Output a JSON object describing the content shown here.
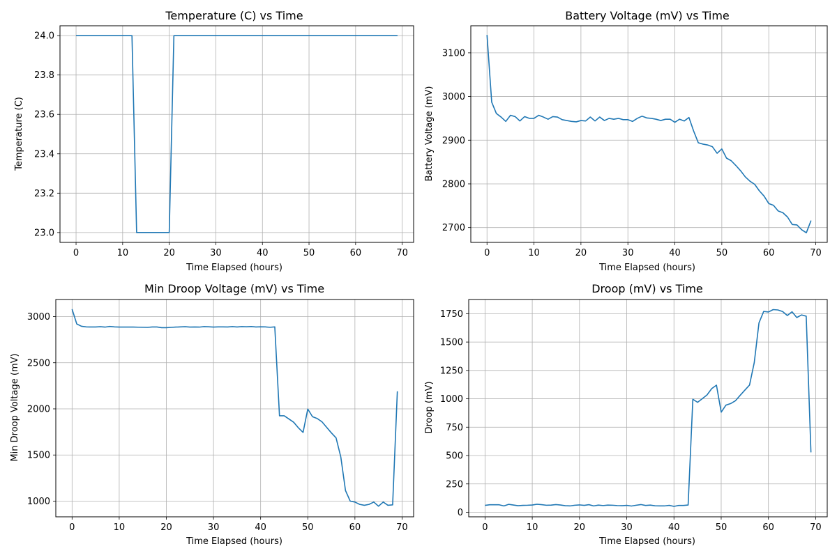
{
  "colors": {
    "series": "#1f77b4",
    "grid": "#b0b0b0"
  },
  "chart_data": [
    {
      "type": "line",
      "title": "Temperature (C) vs Time",
      "xlabel": "Time Elapsed (hours)",
      "ylabel": "Temperature (C)",
      "xlim": [
        -3.45,
        72.45
      ],
      "ylim": [
        22.95,
        24.05
      ],
      "xticks": [
        0,
        10,
        20,
        30,
        40,
        50,
        60,
        70
      ],
      "yticks": [
        23.0,
        23.2,
        23.4,
        23.6,
        23.8,
        24.0
      ],
      "ytick_labels": [
        "23.0",
        "23.2",
        "23.4",
        "23.6",
        "23.8",
        "24.0"
      ],
      "grid": true,
      "series": [
        {
          "x": [
            0,
            1,
            2,
            3,
            4,
            5,
            6,
            7,
            8,
            9,
            10,
            11,
            12,
            13,
            14,
            15,
            16,
            17,
            18,
            19,
            20,
            21,
            22,
            23,
            24,
            25,
            26,
            27,
            28,
            29,
            30,
            31,
            32,
            33,
            34,
            35,
            36,
            37,
            38,
            39,
            40,
            41,
            42,
            43,
            44,
            45,
            46,
            47,
            48,
            49,
            50,
            51,
            52,
            53,
            54,
            55,
            56,
            57,
            58,
            59,
            60,
            61,
            62,
            63,
            64,
            65,
            66,
            67,
            68,
            69
          ],
          "values": [
            24,
            24,
            24,
            24,
            24,
            24,
            24,
            24,
            24,
            24,
            24,
            24,
            24,
            23,
            23,
            23,
            23,
            23,
            23,
            23,
            23,
            24,
            24,
            24,
            24,
            24,
            24,
            24,
            24,
            24,
            24,
            24,
            24,
            24,
            24,
            24,
            24,
            24,
            24,
            24,
            24,
            24,
            24,
            24,
            24,
            24,
            24,
            24,
            24,
            24,
            24,
            24,
            24,
            24,
            24,
            24,
            24,
            24,
            24,
            24,
            24,
            24,
            24,
            24,
            24,
            24,
            24,
            24,
            24,
            24
          ]
        }
      ]
    },
    {
      "type": "line",
      "title": "Battery Voltage (mV) vs Time",
      "xlabel": "Time Elapsed (hours)",
      "ylabel": "Battery Voltage (mV)",
      "xlim": [
        -3.45,
        72.45
      ],
      "ylim": [
        2666,
        3162
      ],
      "xticks": [
        0,
        10,
        20,
        30,
        40,
        50,
        60,
        70
      ],
      "yticks": [
        2700,
        2800,
        2900,
        3000,
        3100
      ],
      "ytick_labels": [
        "2700",
        "2800",
        "2900",
        "3000",
        "3100"
      ],
      "grid": true,
      "series": [
        {
          "x": [
            0,
            1,
            2,
            3,
            4,
            5,
            6,
            7,
            8,
            9,
            10,
            11,
            12,
            13,
            14,
            15,
            16,
            17,
            18,
            19,
            20,
            21,
            22,
            23,
            24,
            25,
            26,
            27,
            28,
            29,
            30,
            31,
            32,
            33,
            34,
            35,
            36,
            37,
            38,
            39,
            40,
            41,
            42,
            43,
            44,
            45,
            46,
            47,
            48,
            49,
            50,
            51,
            52,
            53,
            54,
            55,
            56,
            57,
            58,
            59,
            60,
            61,
            62,
            63,
            64,
            65,
            66,
            67,
            68,
            69
          ],
          "values": [
            3141,
            2987,
            2961,
            2953,
            2943,
            2957,
            2954,
            2944,
            2954,
            2950,
            2950,
            2957,
            2953,
            2948,
            2954,
            2953,
            2947,
            2945,
            2943,
            2942,
            2945,
            2944,
            2953,
            2944,
            2953,
            2945,
            2950,
            2948,
            2950,
            2947,
            2947,
            2943,
            2950,
            2955,
            2951,
            2950,
            2948,
            2945,
            2948,
            2948,
            2941,
            2948,
            2944,
            2952,
            2921,
            2894,
            2891,
            2889,
            2885,
            2870,
            2880,
            2859,
            2853,
            2842,
            2830,
            2816,
            2806,
            2799,
            2784,
            2772,
            2755,
            2751,
            2738,
            2734,
            2724,
            2707,
            2706,
            2695,
            2688,
            2716
          ]
        }
      ]
    },
    {
      "type": "line",
      "title": "Min Droop Voltage (mV) vs Time",
      "xlabel": "Time Elapsed (hours)",
      "ylabel": "Min Droop Voltage (mV)",
      "xlim": [
        -3.45,
        72.45
      ],
      "ylim": [
        830,
        3185
      ],
      "xticks": [
        0,
        10,
        20,
        30,
        40,
        50,
        60,
        70
      ],
      "yticks": [
        1000,
        1500,
        2000,
        2500,
        3000
      ],
      "ytick_labels": [
        "1000",
        "1500",
        "2000",
        "2500",
        "3000"
      ],
      "grid": true,
      "series": [
        {
          "x": [
            0,
            1,
            2,
            3,
            4,
            5,
            6,
            7,
            8,
            9,
            10,
            11,
            12,
            13,
            14,
            15,
            16,
            17,
            18,
            19,
            20,
            21,
            22,
            23,
            24,
            25,
            26,
            27,
            28,
            29,
            30,
            31,
            32,
            33,
            34,
            35,
            36,
            37,
            38,
            39,
            40,
            41,
            42,
            43,
            44,
            45,
            46,
            47,
            48,
            49,
            50,
            51,
            52,
            53,
            54,
            55,
            56,
            57,
            58,
            59,
            60,
            61,
            62,
            63,
            64,
            65,
            66,
            67,
            68,
            69
          ],
          "values": [
            3080,
            2920,
            2895,
            2888,
            2887,
            2887,
            2890,
            2886,
            2893,
            2888,
            2886,
            2886,
            2886,
            2886,
            2885,
            2884,
            2883,
            2887,
            2887,
            2880,
            2880,
            2883,
            2886,
            2888,
            2890,
            2886,
            2887,
            2886,
            2891,
            2889,
            2886,
            2888,
            2888,
            2887,
            2891,
            2887,
            2891,
            2889,
            2892,
            2887,
            2889,
            2888,
            2884,
            2888,
            1925,
            1925,
            1890,
            1855,
            1795,
            1745,
            1998,
            1915,
            1895,
            1860,
            1800,
            1740,
            1685,
            1480,
            1115,
            1000,
            990,
            965,
            955,
            965,
            990,
            945,
            990,
            955,
            960,
            2190
          ]
        }
      ]
    },
    {
      "type": "line",
      "title": "Droop (mV) vs Time",
      "xlabel": "Time Elapsed (hours)",
      "ylabel": "Droop (mV)",
      "xlim": [
        -3.45,
        72.45
      ],
      "ylim": [
        -40,
        1875
      ],
      "xticks": [
        0,
        10,
        20,
        30,
        40,
        50,
        60,
        70
      ],
      "yticks": [
        0,
        250,
        500,
        750,
        1000,
        1250,
        1500,
        1750
      ],
      "ytick_labels": [
        "0",
        "250",
        "500",
        "750",
        "1000",
        "1250",
        "1500",
        "1750"
      ],
      "grid": true,
      "series": [
        {
          "x": [
            0,
            1,
            2,
            3,
            4,
            5,
            6,
            7,
            8,
            9,
            10,
            11,
            12,
            13,
            14,
            15,
            16,
            17,
            18,
            19,
            20,
            21,
            22,
            23,
            24,
            25,
            26,
            27,
            28,
            29,
            30,
            31,
            32,
            33,
            34,
            35,
            36,
            37,
            38,
            39,
            40,
            41,
            42,
            43,
            44,
            45,
            46,
            47,
            48,
            49,
            50,
            51,
            52,
            53,
            54,
            55,
            56,
            57,
            58,
            59,
            60,
            61,
            62,
            63,
            64,
            65,
            66,
            67,
            68,
            69
          ],
          "values": [
            61,
            66,
            66,
            66,
            56,
            70,
            64,
            58,
            61,
            62,
            64,
            71,
            67,
            62,
            63,
            68,
            64,
            58,
            56,
            62,
            65,
            61,
            67,
            56,
            63,
            59,
            63,
            62,
            59,
            58,
            61,
            55,
            62,
            68,
            60,
            63,
            57,
            56,
            56,
            61,
            52,
            60,
            60,
            64,
            996,
            969,
            1001,
            1034,
            1090,
            1120,
            882,
            944,
            958,
            982,
            1030,
            1076,
            1121,
            1319,
            1669,
            1770,
            1765,
            1786,
            1783,
            1769,
            1734,
            1767,
            1716,
            1739,
            1728,
            528
          ]
        }
      ]
    }
  ]
}
